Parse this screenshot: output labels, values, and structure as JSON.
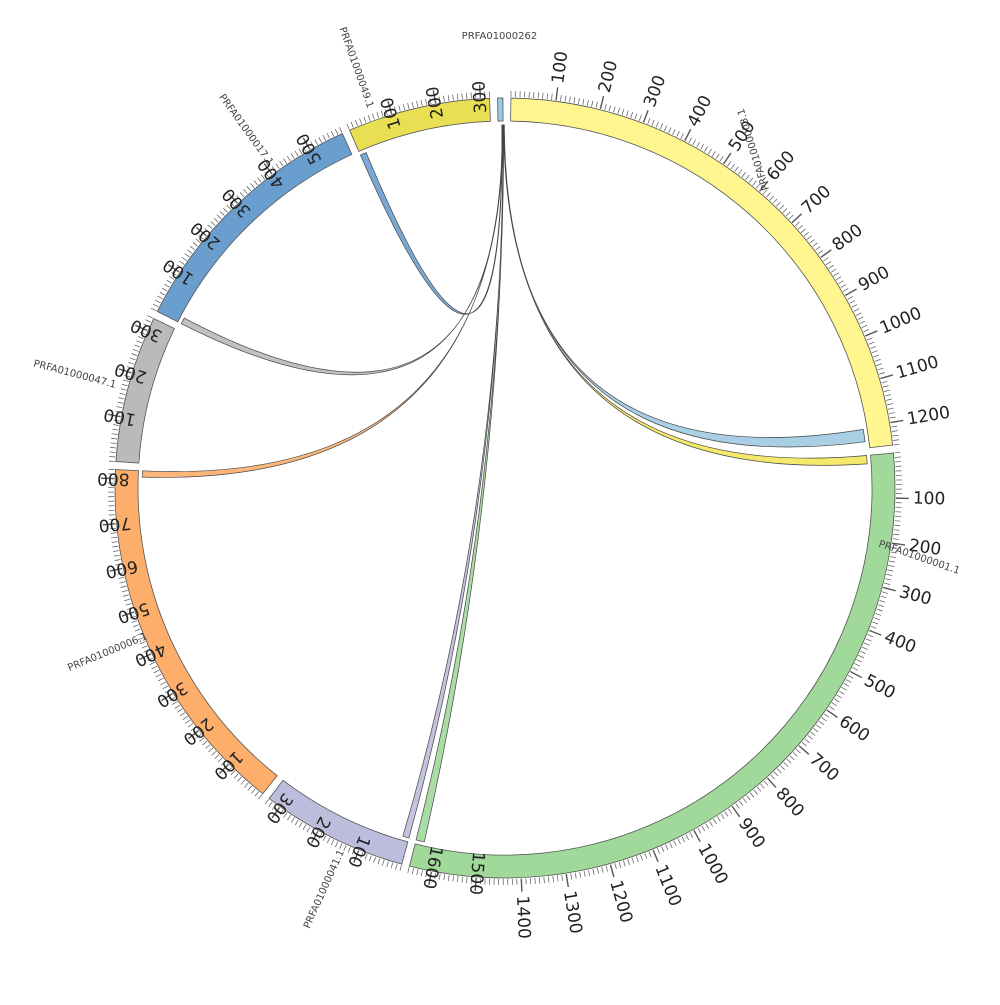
{
  "chart_data": {
    "type": "chord",
    "segments": [
      {
        "name": "PRFA01000262",
        "length": 12,
        "color": "#9ecae1",
        "ticks": []
      },
      {
        "name": "PRFA01000003.1",
        "length": 1250,
        "color": "#fff68f",
        "ticks": [
          100,
          200,
          300,
          400,
          500,
          600,
          700,
          800,
          900,
          1000,
          1100,
          1200
        ]
      },
      {
        "name": "PRFA01000001.1",
        "length": 1650,
        "color": "#a1d99b",
        "ticks": [
          100,
          200,
          300,
          400,
          500,
          600,
          700,
          800,
          900,
          1000,
          1100,
          1200,
          1300,
          1400,
          1500,
          1600
        ]
      },
      {
        "name": "PRFA01000041.1",
        "length": 330,
        "color": "#bcbddc",
        "ticks": [
          100,
          200,
          300
        ]
      },
      {
        "name": "PRFA01000006.1",
        "length": 820,
        "color": "#fdae6b",
        "ticks": [
          100,
          200,
          300,
          400,
          500,
          600,
          700,
          800
        ]
      },
      {
        "name": "PRFA01000047.1",
        "length": 330,
        "color": "#bababa",
        "ticks": [
          100,
          200,
          300
        ]
      },
      {
        "name": "PRFA01000017.1",
        "length": 580,
        "color": "#6a9ecf",
        "ticks": [
          100,
          200,
          300,
          400,
          500
        ]
      },
      {
        "name": "PRFA01000049.1",
        "length": 320,
        "color": "#e8e052",
        "ticks": [
          100,
          200,
          300
        ]
      }
    ],
    "links": [
      {
        "source": "PRFA01000262",
        "target": "PRFA01000003.1",
        "target_pos": [
          1205,
          1235
        ],
        "color": "#9ecae1"
      },
      {
        "source": "PRFA01000262",
        "target": "PRFA01000001.1",
        "target_pos": [
          0,
          20
        ],
        "color": "#f3e75a"
      },
      {
        "source": "PRFA01000262",
        "target": "PRFA01000001.1",
        "target_pos": [
          1630,
          1650
        ],
        "color": "#a1d99b"
      },
      {
        "source": "PRFA01000262",
        "target": "PRFA01000041.1",
        "target_pos": [
          0,
          15
        ],
        "color": "#bcbddc"
      },
      {
        "source": "PRFA01000262",
        "target": "PRFA01000006.1",
        "target_pos": [
          805,
          820
        ],
        "color": "#fdae6b"
      },
      {
        "source": "PRFA01000262",
        "target": "PRFA01000017.1",
        "target_pos": [
          0,
          15
        ],
        "color": "#bababa"
      },
      {
        "source": "PRFA01000262",
        "target": "PRFA01000049.1",
        "target_pos": [
          0,
          15
        ],
        "color": "#6a9ecf"
      }
    ],
    "minor_tick_step": 10
  }
}
